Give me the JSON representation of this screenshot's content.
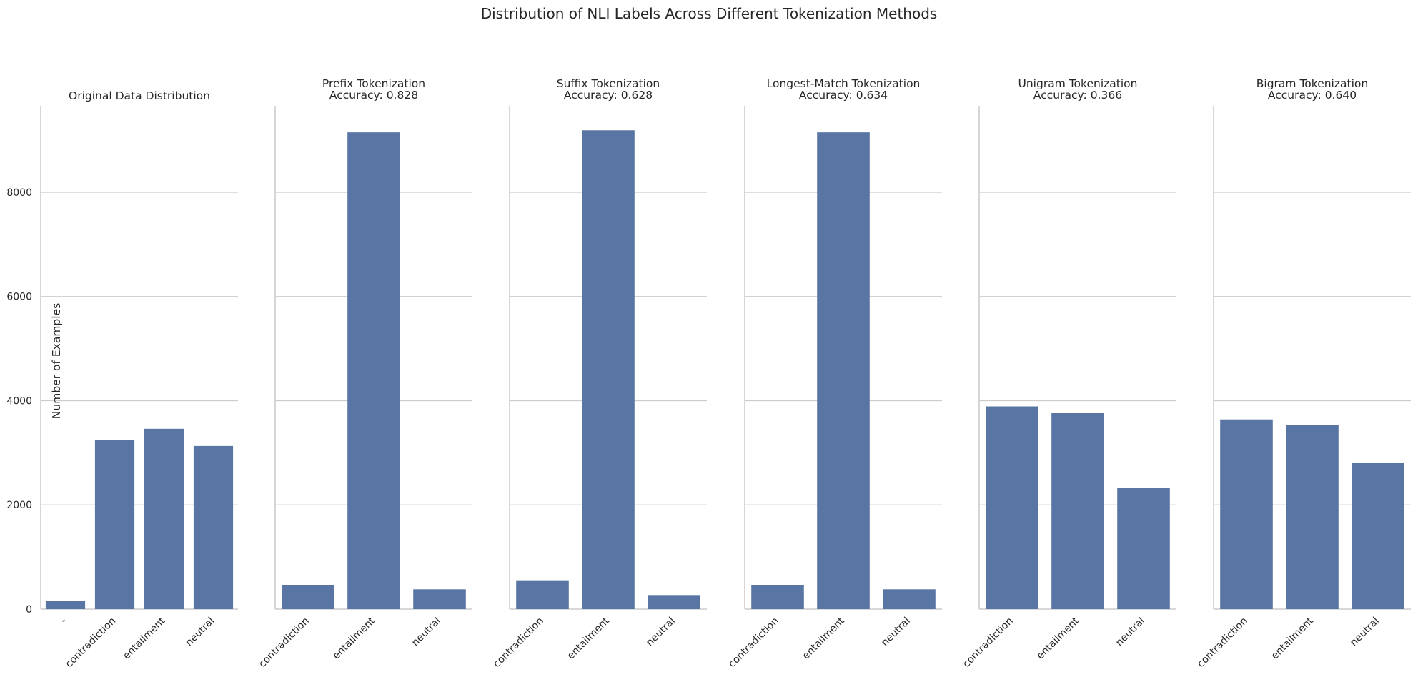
{
  "figure_title": "Distribution of NLI Labels Across Different Tokenization Methods",
  "chart_data": [
    {
      "type": "bar",
      "title": "Original Data Distribution",
      "categories": [
        "-",
        "contradiction",
        "entailment",
        "neutral"
      ],
      "values": [
        160,
        3240,
        3460,
        3130
      ],
      "xlabel": "",
      "ylabel": "Number of Examples",
      "ylim": [
        0,
        9660
      ],
      "yticks": [
        0,
        2000,
        4000,
        6000,
        8000
      ],
      "grid": true
    },
    {
      "type": "bar",
      "title": "Prefix Tokenization\nAccuracy: 0.828",
      "categories": [
        "contradiction",
        "entailment",
        "neutral"
      ],
      "values": [
        460,
        9150,
        380
      ],
      "xlabel": "",
      "ylabel": "",
      "ylim": [
        0,
        9660
      ],
      "grid": true
    },
    {
      "type": "bar",
      "title": "Suffix Tokenization\nAccuracy: 0.628",
      "categories": [
        "contradiction",
        "entailment",
        "neutral"
      ],
      "values": [
        540,
        9190,
        270
      ],
      "xlabel": "",
      "ylabel": "",
      "ylim": [
        0,
        9660
      ],
      "grid": true
    },
    {
      "type": "bar",
      "title": "Longest-Match Tokenization\nAccuracy: 0.634",
      "categories": [
        "contradiction",
        "entailment",
        "neutral"
      ],
      "values": [
        460,
        9150,
        380
      ],
      "xlabel": "",
      "ylabel": "",
      "ylim": [
        0,
        9660
      ],
      "grid": true
    },
    {
      "type": "bar",
      "title": "Unigram Tokenization\nAccuracy: 0.366",
      "categories": [
        "contradiction",
        "entailment",
        "neutral"
      ],
      "values": [
        3890,
        3760,
        2320
      ],
      "xlabel": "",
      "ylabel": "",
      "ylim": [
        0,
        9660
      ],
      "grid": true
    },
    {
      "type": "bar",
      "title": "Bigram Tokenization\nAccuracy: 0.640",
      "categories": [
        "contradiction",
        "entailment",
        "neutral"
      ],
      "values": [
        3640,
        3530,
        2810
      ],
      "xlabel": "",
      "ylabel": "",
      "ylim": [
        0,
        9660
      ],
      "grid": true
    }
  ],
  "colors": {
    "bar": "#5975a4",
    "grid": "#cccccc",
    "text": "#262626"
  }
}
